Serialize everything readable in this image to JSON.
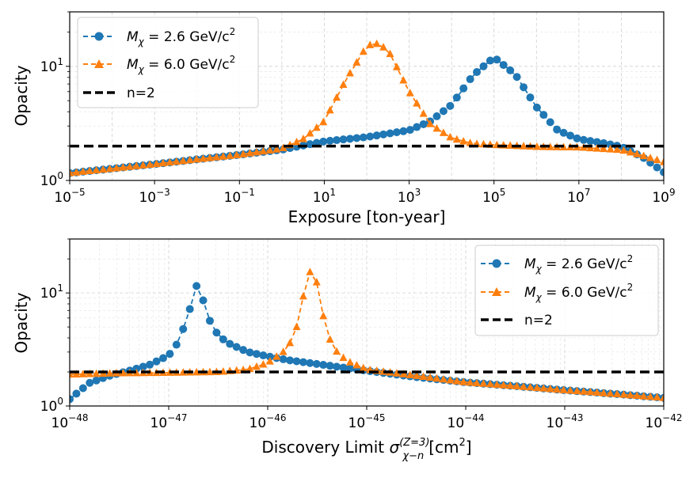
{
  "colors": {
    "blue": "#1f77b4",
    "orange": "#ff7f0e",
    "black": "#000000"
  },
  "chart_data": [
    {
      "type": "line",
      "xscale": "log",
      "yscale": "log",
      "xlabel": "Exposure [ton-year]",
      "ylabel": "Opacity",
      "xlim_exp": [
        -5,
        9
      ],
      "ylim": [
        1,
        30
      ],
      "xticks": [
        {
          "base": "10",
          "exp": "−5",
          "val": -5
        },
        {
          "base": "10",
          "exp": "−3",
          "val": -3
        },
        {
          "base": "10",
          "exp": "−1",
          "val": -1
        },
        {
          "base": "10",
          "exp": "1",
          "val": 1
        },
        {
          "base": "10",
          "exp": "3",
          "val": 3
        },
        {
          "base": "10",
          "exp": "5",
          "val": 5
        },
        {
          "base": "10",
          "exp": "7",
          "val": 7
        },
        {
          "base": "10",
          "exp": "9",
          "val": 9
        }
      ],
      "yticks": [
        {
          "base": "10",
          "exp": "0",
          "val": 1
        },
        {
          "base": "10",
          "exp": "1",
          "val": 10
        }
      ],
      "legend_position": "upper-left",
      "legend": [
        {
          "sym": "M",
          "sub": "χ",
          "text": " = 2.6 GeV/c",
          "sup": "2"
        },
        {
          "sym": "M",
          "sub": "χ",
          "text": " = 6.0 GeV/c",
          "sup": "2"
        },
        {
          "text": "n=2"
        }
      ],
      "series": [
        {
          "name": "M_chi = 2.6 GeV/c^2",
          "color": "blue",
          "marker": "circle",
          "style": "dashed",
          "x_log10": [
            -5,
            -4,
            -3,
            -2,
            -1,
            0,
            1,
            2,
            3,
            3.5,
            4,
            4.5,
            5,
            5.5,
            6,
            6.5,
            7,
            7.5,
            8,
            8.5,
            9
          ],
          "y": [
            1.16,
            1.27,
            1.39,
            1.53,
            1.68,
            1.86,
            2.2,
            2.4,
            2.75,
            3.3,
            4.6,
            8.3,
            12,
            8.5,
            4.4,
            2.75,
            2.3,
            2.15,
            1.98,
            1.6,
            1.18
          ]
        },
        {
          "name": "M_chi = 6.0 GeV/c^2",
          "color": "orange",
          "marker": "triangle",
          "style": "dashed",
          "x_log10": [
            -5,
            -4,
            -3,
            -2,
            -1,
            0,
            0.5,
            1,
            1.5,
            2,
            2.2,
            2.5,
            3,
            3.5,
            4,
            4.5,
            5,
            6,
            7,
            8,
            8.5,
            9
          ],
          "y": [
            1.16,
            1.27,
            1.39,
            1.53,
            1.68,
            1.9,
            2.3,
            3.3,
            7.5,
            15,
            16,
            14,
            6,
            3.1,
            2.35,
            2.1,
            2.05,
            1.97,
            1.95,
            1.85,
            1.65,
            1.45
          ]
        },
        {
          "name": "n=2",
          "color": "black",
          "style": "dashed-thick",
          "x_log10": [
            -5,
            9
          ],
          "y": [
            2,
            2
          ]
        }
      ]
    },
    {
      "type": "line",
      "xscale": "log",
      "yscale": "log",
      "xlabel": "Discovery Limit",
      "xlabel_sym": "σ",
      "xlabel_sup": "(Z=3)",
      "xlabel_sub": "χ−n",
      "xlabel_unit_open": "[cm",
      "xlabel_unit_sup": "2",
      "xlabel_unit_close": "]",
      "ylabel": "Opacity",
      "xlim_exp": [
        -48,
        -42
      ],
      "ylim": [
        1,
        30
      ],
      "xticks": [
        {
          "base": "10",
          "exp": "−48",
          "val": -48
        },
        {
          "base": "10",
          "exp": "−47",
          "val": -47
        },
        {
          "base": "10",
          "exp": "−46",
          "val": -46
        },
        {
          "base": "10",
          "exp": "−45",
          "val": -45
        },
        {
          "base": "10",
          "exp": "−44",
          "val": -44
        },
        {
          "base": "10",
          "exp": "−43",
          "val": -43
        },
        {
          "base": "10",
          "exp": "−42",
          "val": -42
        }
      ],
      "yticks": [
        {
          "base": "10",
          "exp": "0",
          "val": 1
        },
        {
          "base": "10",
          "exp": "1",
          "val": 10
        }
      ],
      "legend_position": "upper-right",
      "legend": [
        {
          "sym": "M",
          "sub": "χ",
          "text": " = 2.6 GeV/c",
          "sup": "2"
        },
        {
          "sym": "M",
          "sub": "χ",
          "text": " = 6.0 GeV/c",
          "sup": "2"
        },
        {
          "text": "n=2"
        }
      ],
      "series": [
        {
          "name": "M_chi = 2.6 GeV/c^2",
          "color": "blue",
          "marker": "circle",
          "style": "dashed",
          "x_log10": [
            -48,
            -47.8,
            -47.6,
            -47.4,
            -47.2,
            -47,
            -46.9,
            -46.8,
            -46.75,
            -46.72,
            -46.7,
            -46.65,
            -46.6,
            -46.5,
            -46.4,
            -46.2,
            -46,
            -45.8,
            -45.5,
            -45,
            -44.5,
            -44,
            -43.5,
            -43,
            -42.5,
            -42
          ],
          "y": [
            1.15,
            1.6,
            1.85,
            2.05,
            2.3,
            2.8,
            3.7,
            6.5,
            9.5,
            11.5,
            12,
            8.5,
            6,
            4.2,
            3.6,
            3.0,
            2.75,
            2.55,
            2.35,
            2.05,
            1.8,
            1.62,
            1.5,
            1.38,
            1.28,
            1.18
          ]
        },
        {
          "name": "M_chi = 6.0 GeV/c^2",
          "color": "orange",
          "marker": "triangle",
          "style": "dashed",
          "x_log10": [
            -48,
            -47.5,
            -47,
            -46.5,
            -46.2,
            -46,
            -45.8,
            -45.7,
            -45.65,
            -45.6,
            -45.55,
            -45.5,
            -45.45,
            -45.4,
            -45.3,
            -45.2,
            -45,
            -44.5,
            -44,
            -43.5,
            -43,
            -42.5,
            -42
          ],
          "y": [
            1.9,
            1.95,
            1.97,
            2.0,
            2.1,
            2.4,
            3.2,
            5.2,
            8.5,
            14,
            16.5,
            12,
            7,
            4.3,
            3.0,
            2.5,
            2.1,
            1.85,
            1.62,
            1.5,
            1.38,
            1.28,
            1.18
          ]
        },
        {
          "name": "n=2",
          "color": "black",
          "style": "dashed-thick",
          "x_log10": [
            -48,
            -42
          ],
          "y": [
            2,
            2
          ]
        }
      ]
    }
  ]
}
